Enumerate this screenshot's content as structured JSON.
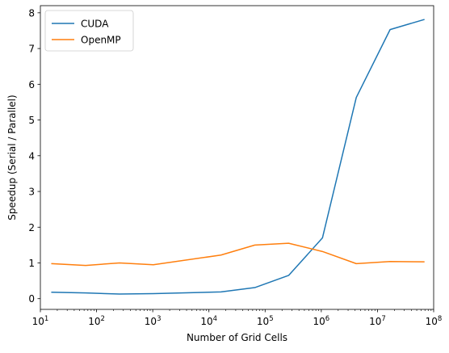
{
  "chart_data": {
    "type": "line",
    "title": "",
    "xlabel": "Number of Grid Cells",
    "ylabel": "Speedup (Serial / Parallel)",
    "xscale": "log",
    "xlim": [
      10,
      100000000
    ],
    "ylim": [
      -0.3,
      8.2
    ],
    "grid": false,
    "legend_position": "top-left",
    "x": [
      16,
      64,
      256,
      1024,
      16384,
      65536,
      262144,
      1048576,
      4194304,
      16777216,
      67108864
    ],
    "series": [
      {
        "name": "CUDA",
        "color": "#1f77b4",
        "values": [
          0.18,
          0.16,
          0.13,
          0.14,
          0.19,
          0.31,
          0.65,
          1.7,
          5.63,
          7.53,
          7.81
        ]
      },
      {
        "name": "OpenMP",
        "color": "#ff7f0e",
        "values": [
          0.98,
          0.93,
          1.0,
          0.95,
          1.22,
          1.5,
          1.55,
          1.32,
          0.98,
          1.04,
          1.03
        ]
      }
    ],
    "x_tick_labels": [
      {
        "value": 10,
        "base": "10",
        "exp": "1"
      },
      {
        "value": 100,
        "base": "10",
        "exp": "2"
      },
      {
        "value": 1000,
        "base": "10",
        "exp": "3"
      },
      {
        "value": 10000,
        "base": "10",
        "exp": "4"
      },
      {
        "value": 100000,
        "base": "10",
        "exp": "5"
      },
      {
        "value": 1000000,
        "base": "10",
        "exp": "6"
      },
      {
        "value": 10000000,
        "base": "10",
        "exp": "7"
      },
      {
        "value": 100000000,
        "base": "10",
        "exp": "8"
      }
    ],
    "y_ticks": [
      0,
      1,
      2,
      3,
      4,
      5,
      6,
      7,
      8
    ]
  }
}
